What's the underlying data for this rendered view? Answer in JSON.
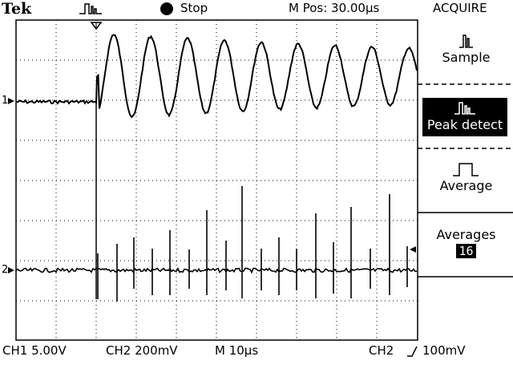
{
  "header": {
    "brand": "Tek",
    "run_state": "Stop",
    "position": "M Pos: 30.00µs",
    "menu_title": "ACQUIRE"
  },
  "side_menu": {
    "sample_label": "Sample",
    "peak_detect_label": "Peak detect",
    "average_label": "Average",
    "averages_label": "Averages",
    "averages_value": "16",
    "selected": "Peak detect"
  },
  "status": {
    "ch1": "CH1  5.00V",
    "ch2": "CH2  200mV",
    "timebase": "M  10µs",
    "trigger_source": "CH2",
    "trigger_level": "100mV"
  },
  "channels": {
    "ch1_marker": "1",
    "ch2_marker": "2"
  },
  "colors": {
    "trace": "#000000",
    "grid": "#000000",
    "background": "#ffffff"
  }
}
